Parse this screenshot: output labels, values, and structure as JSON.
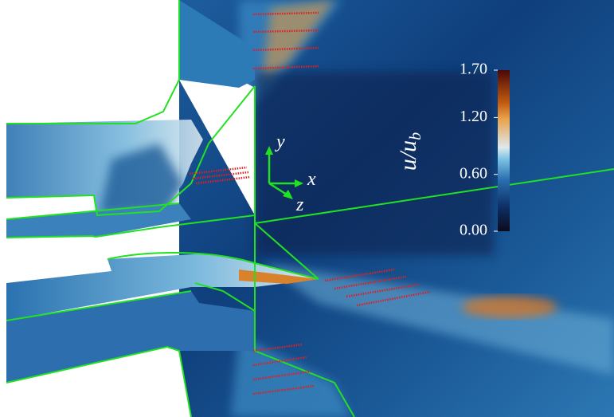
{
  "colorbar": {
    "label_main": "u/u",
    "label_sub": "b",
    "range": [
      0,
      1.7
    ],
    "ticks": [
      {
        "value": 0,
        "label": "0.00"
      },
      {
        "value": 0.6,
        "label": "0.60"
      },
      {
        "value": 1.2,
        "label": "1.20"
      },
      {
        "value": 1.7,
        "label": "1.70"
      }
    ]
  },
  "axes": {
    "y": "y",
    "x": "x",
    "z": "z"
  }
}
